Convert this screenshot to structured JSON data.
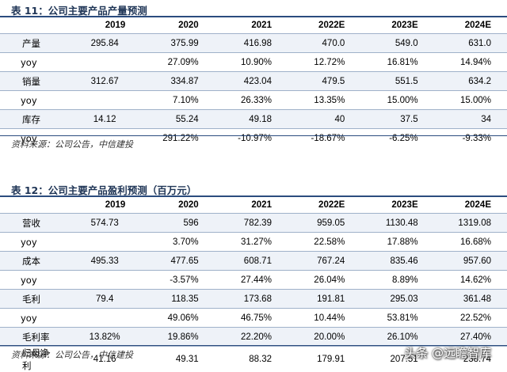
{
  "table1": {
    "title": "表 11：公司主要产品产量预测",
    "header": [
      "",
      "2019",
      "2020",
      "2021",
      "2022E",
      "2023E",
      "2024E"
    ],
    "rows": [
      {
        "label": "产量",
        "values": [
          "295.84",
          "375.99",
          "416.98",
          "470.0",
          "549.0",
          "631.0"
        ]
      },
      {
        "label": "yoy",
        "values": [
          "",
          "27.09%",
          "10.90%",
          "12.72%",
          "16.81%",
          "14.94%"
        ]
      },
      {
        "label": "销量",
        "values": [
          "312.67",
          "334.87",
          "423.04",
          "479.5",
          "551.5",
          "634.2"
        ]
      },
      {
        "label": "yoy",
        "values": [
          "",
          "7.10%",
          "26.33%",
          "13.35%",
          "15.00%",
          "15.00%"
        ]
      },
      {
        "label": "库存",
        "values": [
          "14.12",
          "55.24",
          "49.18",
          "40",
          "37.5",
          "34"
        ]
      },
      {
        "label": "yoy",
        "values": [
          "",
          "291.22%",
          "-10.97%",
          "-18.67%",
          "-6.25%",
          "-9.33%"
        ]
      }
    ],
    "source": "资料来源：公司公告，中信建投"
  },
  "table2": {
    "title": "表 12：公司主要产品盈利预测（百万元）",
    "header": [
      "",
      "2019",
      "2020",
      "2021",
      "2022E",
      "2023E",
      "2024E"
    ],
    "rows": [
      {
        "label": "营收",
        "values": [
          "574.73",
          "596",
          "782.39",
          "959.05",
          "1130.48",
          "1319.08"
        ]
      },
      {
        "label": "yoy",
        "values": [
          "",
          "3.70%",
          "31.27%",
          "22.58%",
          "17.88%",
          "16.68%"
        ]
      },
      {
        "label": "成本",
        "values": [
          "495.33",
          "477.65",
          "608.71",
          "767.24",
          "835.46",
          "957.60"
        ]
      },
      {
        "label": "yoy",
        "values": [
          "",
          "-3.57%",
          "27.44%",
          "26.04%",
          "8.89%",
          "14.62%"
        ]
      },
      {
        "label": "毛利",
        "values": [
          "79.4",
          "118.35",
          "173.68",
          "191.81",
          "295.03",
          "361.48"
        ]
      },
      {
        "label": "yoy",
        "values": [
          "",
          "49.06%",
          "46.75%",
          "10.44%",
          "53.81%",
          "22.52%"
        ]
      },
      {
        "label": "毛利率",
        "values": [
          "13.82%",
          "19.86%",
          "22.20%",
          "20.00%",
          "26.10%",
          "27.40%"
        ]
      },
      {
        "label": "归母净利",
        "values": [
          "41.16",
          "49.31",
          "88.32",
          "179.91",
          "207.51",
          "238.74"
        ]
      }
    ],
    "source": "资料来源：公司公告，中信建投"
  },
  "watermark": "头条 @远瞻智库"
}
